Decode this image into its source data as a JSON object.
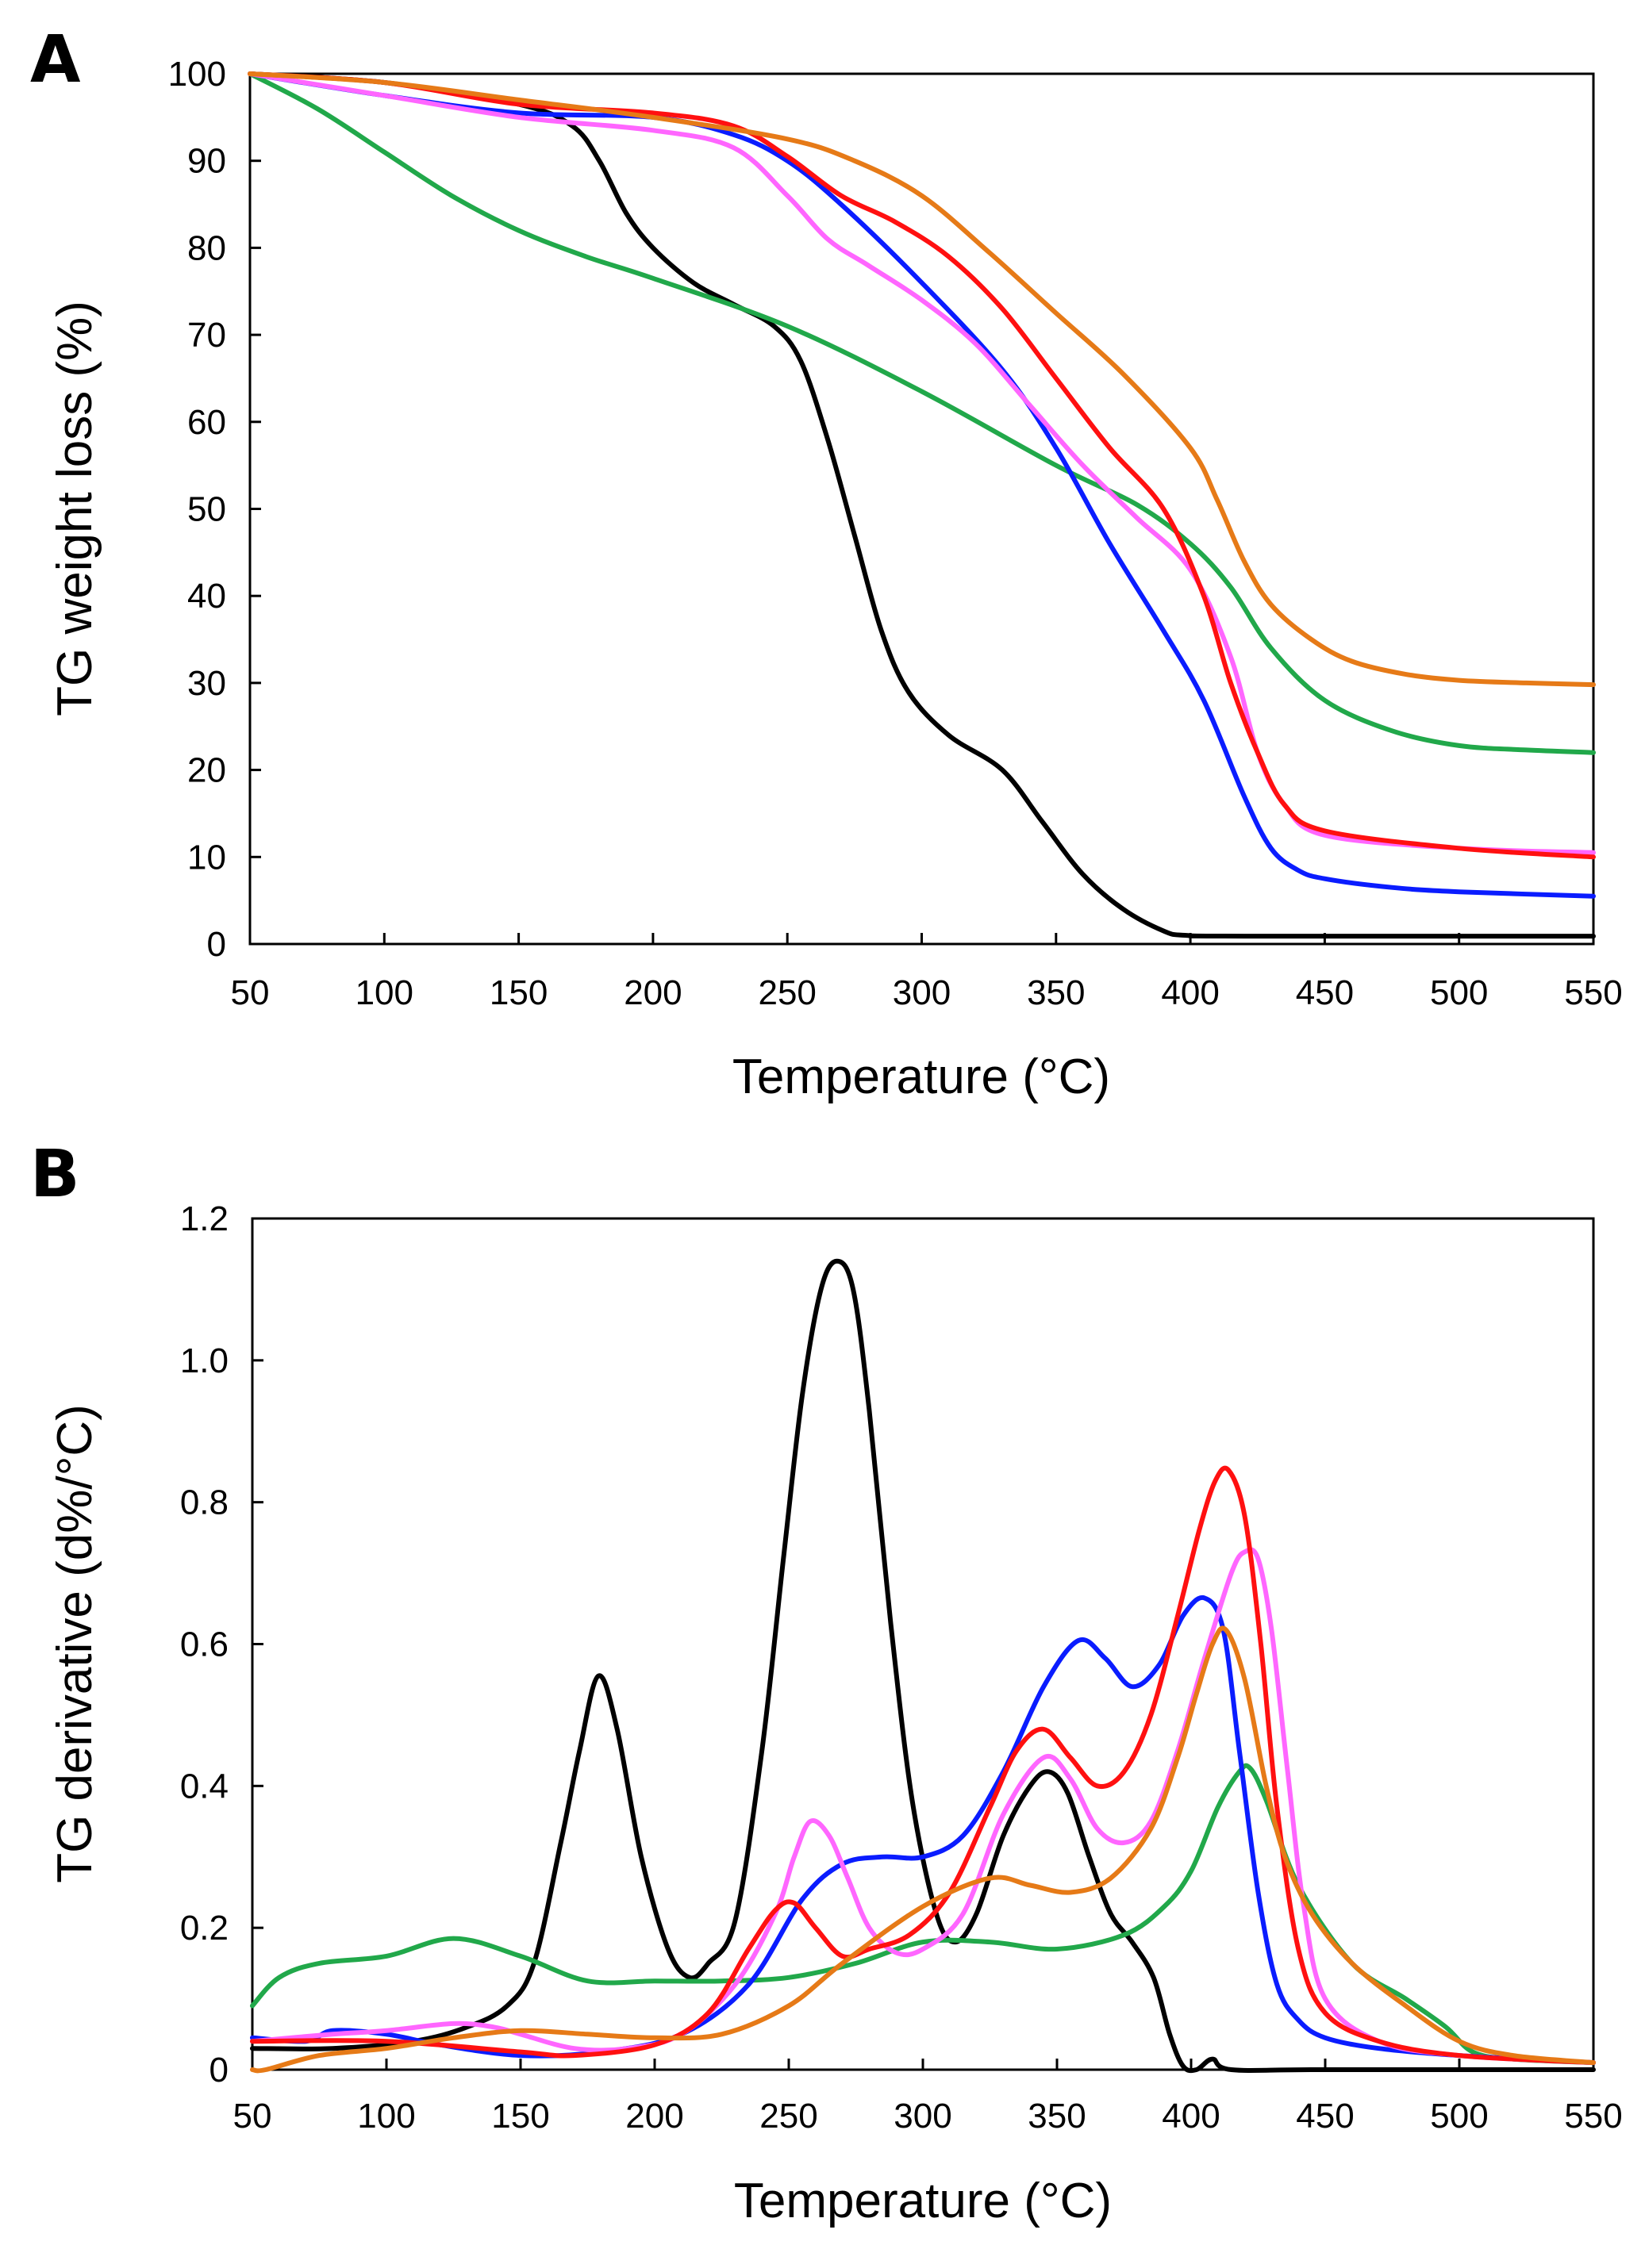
{
  "chart_data": [
    {
      "panel": "A",
      "type": "line",
      "xlabel": "Temperature (°C)",
      "ylabel": "TG weight loss (%)",
      "xlim": [
        50,
        550
      ],
      "ylim": [
        0,
        100
      ],
      "xticks": [
        50,
        100,
        150,
        200,
        250,
        300,
        350,
        400,
        450,
        500,
        550
      ],
      "yticks": [
        0,
        10,
        20,
        30,
        40,
        50,
        60,
        70,
        80,
        90,
        100
      ],
      "grid": false,
      "series": [
        {
          "name": "black",
          "color": "#000000",
          "x": [
            50,
            100,
            150,
            170,
            180,
            190,
            200,
            215,
            230,
            245,
            255,
            265,
            275,
            285,
            295,
            310,
            330,
            345,
            360,
            375,
            390,
            398,
            420,
            550
          ],
          "y": [
            100,
            99,
            96.5,
            94,
            90,
            84,
            80,
            76,
            73.5,
            71,
            67,
            58,
            47,
            36,
            29,
            24,
            20,
            14,
            8,
            4,
            1.5,
            1,
            0.9,
            0.9
          ]
        },
        {
          "name": "green",
          "color": "#21a84a",
          "x": [
            50,
            75,
            100,
            125,
            150,
            175,
            200,
            250,
            300,
            350,
            380,
            400,
            415,
            430,
            450,
            475,
            500,
            525,
            550
          ],
          "y": [
            100,
            96,
            91,
            86,
            82,
            79,
            76.5,
            71,
            63.5,
            55,
            50.5,
            46,
            41,
            34,
            28,
            24.5,
            22.8,
            22.3,
            22
          ]
        },
        {
          "name": "blue",
          "color": "#0a1cff",
          "x": [
            50,
            100,
            150,
            200,
            230,
            250,
            270,
            300,
            330,
            350,
            370,
            390,
            405,
            420,
            430,
            440,
            450,
            475,
            500,
            550
          ],
          "y": [
            100,
            97.5,
            95.5,
            95,
            93,
            90,
            85,
            76,
            66,
            57,
            46,
            36,
            28,
            17,
            11,
            8.5,
            7.5,
            6.5,
            6,
            5.5
          ]
        },
        {
          "name": "magenta",
          "color": "#ff66ff",
          "x": [
            50,
            100,
            150,
            200,
            230,
            250,
            265,
            280,
            300,
            320,
            340,
            360,
            380,
            400,
            415,
            425,
            435,
            450,
            500,
            550
          ],
          "y": [
            100,
            97.5,
            95,
            93.5,
            91.5,
            86,
            81,
            78,
            74,
            69,
            62,
            55,
            49,
            43,
            33,
            22,
            16,
            12.5,
            11,
            10.5
          ]
        },
        {
          "name": "red",
          "color": "#ff1010",
          "x": [
            50,
            100,
            150,
            200,
            230,
            250,
            270,
            290,
            310,
            330,
            350,
            370,
            390,
            405,
            415,
            425,
            435,
            450,
            500,
            550
          ],
          "y": [
            100,
            99,
            96.5,
            95.5,
            94,
            90.5,
            86,
            83,
            79,
            73,
            65,
            57,
            50,
            40,
            30,
            22,
            16,
            13,
            11,
            10
          ]
        },
        {
          "name": "orange",
          "color": "#e67a17",
          "x": [
            50,
            100,
            150,
            200,
            250,
            275,
            300,
            325,
            350,
            375,
            400,
            410,
            420,
            430,
            445,
            460,
            480,
            500,
            525,
            550
          ],
          "y": [
            100,
            99,
            97,
            95,
            92.5,
            90,
            86,
            79.5,
            72.5,
            65.5,
            57,
            51,
            44,
            39,
            35,
            32.5,
            31,
            30.3,
            30,
            29.8
          ]
        }
      ]
    },
    {
      "panel": "B",
      "type": "line",
      "xlabel": "Temperature (°C)",
      "ylabel": "TG derivative (d%/°C)",
      "xlim": [
        50,
        550
      ],
      "ylim": [
        0,
        1.2
      ],
      "xticks": [
        50,
        100,
        150,
        200,
        250,
        300,
        350,
        400,
        450,
        500,
        550
      ],
      "yticks": [
        0,
        0.2,
        0.4,
        0.6,
        0.8,
        1.0,
        1.2
      ],
      "ytick_labels": [
        "0",
        "0.2",
        "0.4",
        "0.6",
        "0.8",
        "1.0",
        "1.2"
      ],
      "grid": false,
      "series": [
        {
          "name": "black",
          "color": "#000000",
          "x": [
            50,
            80,
            110,
            130,
            145,
            155,
            165,
            172,
            179,
            186,
            195,
            205,
            213,
            220,
            230,
            240,
            248,
            255,
            262,
            268,
            274,
            280,
            288,
            296,
            305,
            312,
            320,
            330,
            340,
            347,
            354,
            362,
            370,
            378,
            386,
            392,
            397,
            402,
            408,
            415,
            450,
            550
          ],
          "y": [
            0.03,
            0.03,
            0.04,
            0.06,
            0.09,
            0.15,
            0.32,
            0.45,
            0.555,
            0.48,
            0.3,
            0.17,
            0.13,
            0.15,
            0.21,
            0.45,
            0.72,
            0.95,
            1.1,
            1.14,
            1.1,
            0.93,
            0.63,
            0.38,
            0.22,
            0.18,
            0.22,
            0.33,
            0.4,
            0.42,
            0.39,
            0.3,
            0.22,
            0.18,
            0.13,
            0.05,
            0.005,
            0.0,
            0.015,
            0.0,
            0.0,
            0.0
          ]
        },
        {
          "name": "green",
          "color": "#21a84a",
          "x": [
            50,
            60,
            75,
            100,
            125,
            150,
            175,
            200,
            225,
            250,
            275,
            300,
            325,
            350,
            375,
            390,
            400,
            410,
            418,
            422,
            428,
            440,
            460,
            480,
            495,
            505,
            520,
            550
          ],
          "y": [
            0.09,
            0.13,
            0.15,
            0.16,
            0.185,
            0.16,
            0.125,
            0.125,
            0.125,
            0.13,
            0.15,
            0.18,
            0.18,
            0.17,
            0.19,
            0.23,
            0.28,
            0.37,
            0.42,
            0.425,
            0.38,
            0.26,
            0.15,
            0.1,
            0.06,
            0.025,
            0.015,
            0.01
          ]
        },
        {
          "name": "blue",
          "color": "#0a1cff",
          "x": [
            50,
            70,
            80,
            100,
            120,
            150,
            180,
            210,
            235,
            255,
            270,
            285,
            300,
            315,
            330,
            345,
            358,
            368,
            378,
            388,
            397,
            405,
            412,
            418,
            425,
            432,
            440,
            450,
            470,
            500,
            550
          ],
          "y": [
            0.045,
            0.04,
            0.055,
            0.05,
            0.035,
            0.02,
            0.025,
            0.05,
            0.12,
            0.24,
            0.29,
            0.3,
            0.3,
            0.33,
            0.42,
            0.54,
            0.605,
            0.58,
            0.54,
            0.57,
            0.64,
            0.665,
            0.62,
            0.45,
            0.25,
            0.12,
            0.07,
            0.045,
            0.03,
            0.02,
            0.01
          ]
        },
        {
          "name": "magenta",
          "color": "#ff66ff",
          "x": [
            50,
            80,
            100,
            125,
            140,
            150,
            170,
            190,
            210,
            230,
            245,
            252,
            258,
            265,
            272,
            280,
            290,
            300,
            315,
            330,
            345,
            355,
            365,
            375,
            385,
            395,
            405,
            415,
            420,
            425,
            430,
            436,
            442,
            450,
            470,
            500,
            550
          ],
          "y": [
            0.04,
            0.05,
            0.055,
            0.065,
            0.06,
            0.05,
            0.03,
            0.03,
            0.05,
            0.12,
            0.22,
            0.3,
            0.35,
            0.33,
            0.27,
            0.2,
            0.165,
            0.17,
            0.22,
            0.36,
            0.44,
            0.41,
            0.34,
            0.32,
            0.35,
            0.45,
            0.58,
            0.7,
            0.73,
            0.72,
            0.62,
            0.42,
            0.23,
            0.1,
            0.04,
            0.02,
            0.01
          ]
        },
        {
          "name": "red",
          "color": "#ff1010",
          "x": [
            50,
            100,
            150,
            170,
            200,
            220,
            235,
            245,
            252,
            260,
            270,
            280,
            295,
            310,
            325,
            335,
            345,
            355,
            365,
            375,
            385,
            395,
            403,
            409,
            414,
            420,
            426,
            432,
            440,
            450,
            470,
            500,
            550
          ],
          "y": [
            0.04,
            0.04,
            0.025,
            0.02,
            0.035,
            0.08,
            0.17,
            0.225,
            0.235,
            0.2,
            0.16,
            0.17,
            0.19,
            0.25,
            0.37,
            0.45,
            0.48,
            0.44,
            0.4,
            0.42,
            0.5,
            0.64,
            0.76,
            0.83,
            0.845,
            0.78,
            0.6,
            0.37,
            0.17,
            0.08,
            0.04,
            0.02,
            0.01
          ]
        },
        {
          "name": "orange",
          "color": "#e67a17",
          "x": [
            50,
            55,
            75,
            100,
            125,
            150,
            175,
            200,
            225,
            250,
            270,
            300,
            325,
            340,
            355,
            370,
            385,
            395,
            402,
            408,
            413,
            420,
            428,
            435,
            445,
            460,
            480,
            500,
            520,
            550
          ],
          "y": [
            0.0,
            0.0,
            0.02,
            0.03,
            0.045,
            0.055,
            0.05,
            0.045,
            0.05,
            0.09,
            0.15,
            0.23,
            0.27,
            0.26,
            0.25,
            0.27,
            0.34,
            0.44,
            0.53,
            0.6,
            0.62,
            0.55,
            0.4,
            0.3,
            0.22,
            0.15,
            0.09,
            0.04,
            0.02,
            0.01
          ]
        }
      ]
    }
  ]
}
